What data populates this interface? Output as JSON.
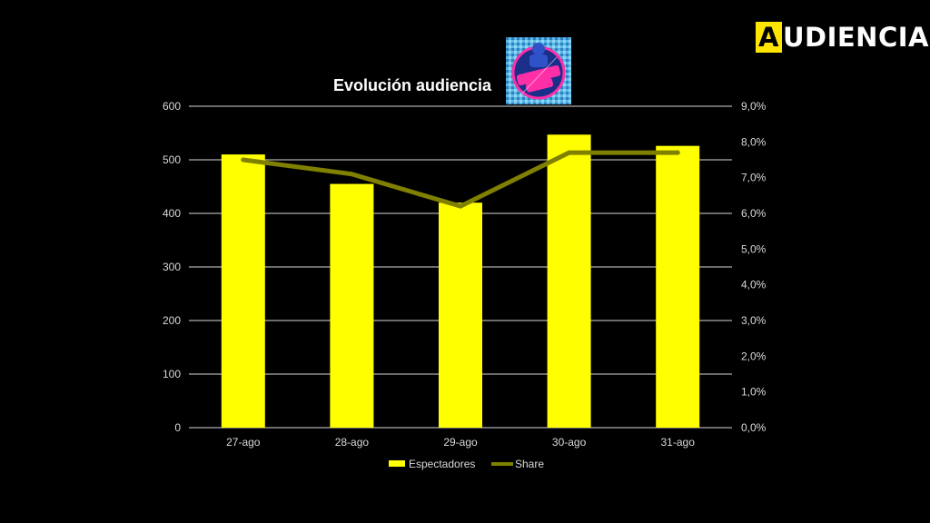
{
  "brand": {
    "initial": "A",
    "rest": "UDIENCIAS",
    "accent": "#ffe500"
  },
  "logo": {
    "name": "show-logo"
  },
  "chart_data": {
    "type": "bar",
    "title": "Evolución audiencia",
    "categories": [
      "27-ago",
      "28-ago",
      "29-ago",
      "30-ago",
      "31-ago"
    ],
    "series": [
      {
        "name": "Espectadores",
        "type": "bar",
        "axis": "left",
        "color": "#ffff00",
        "values": [
          510,
          455,
          420,
          547,
          526
        ]
      },
      {
        "name": "Share",
        "type": "line",
        "axis": "right",
        "color": "#808000",
        "values": [
          7.5,
          7.1,
          6.2,
          7.7,
          7.7
        ]
      }
    ],
    "y_left": {
      "min": 0,
      "max": 600,
      "ticks": [
        "0",
        "100",
        "200",
        "300",
        "400",
        "500",
        "600"
      ]
    },
    "y_right": {
      "min": 0,
      "max": 9,
      "ticks": [
        "0,0%",
        "1,0%",
        "2,0%",
        "3,0%",
        "4,0%",
        "5,0%",
        "6,0%",
        "7,0%",
        "8,0%",
        "9,0%"
      ]
    },
    "grid": true,
    "legend": "bottom"
  }
}
